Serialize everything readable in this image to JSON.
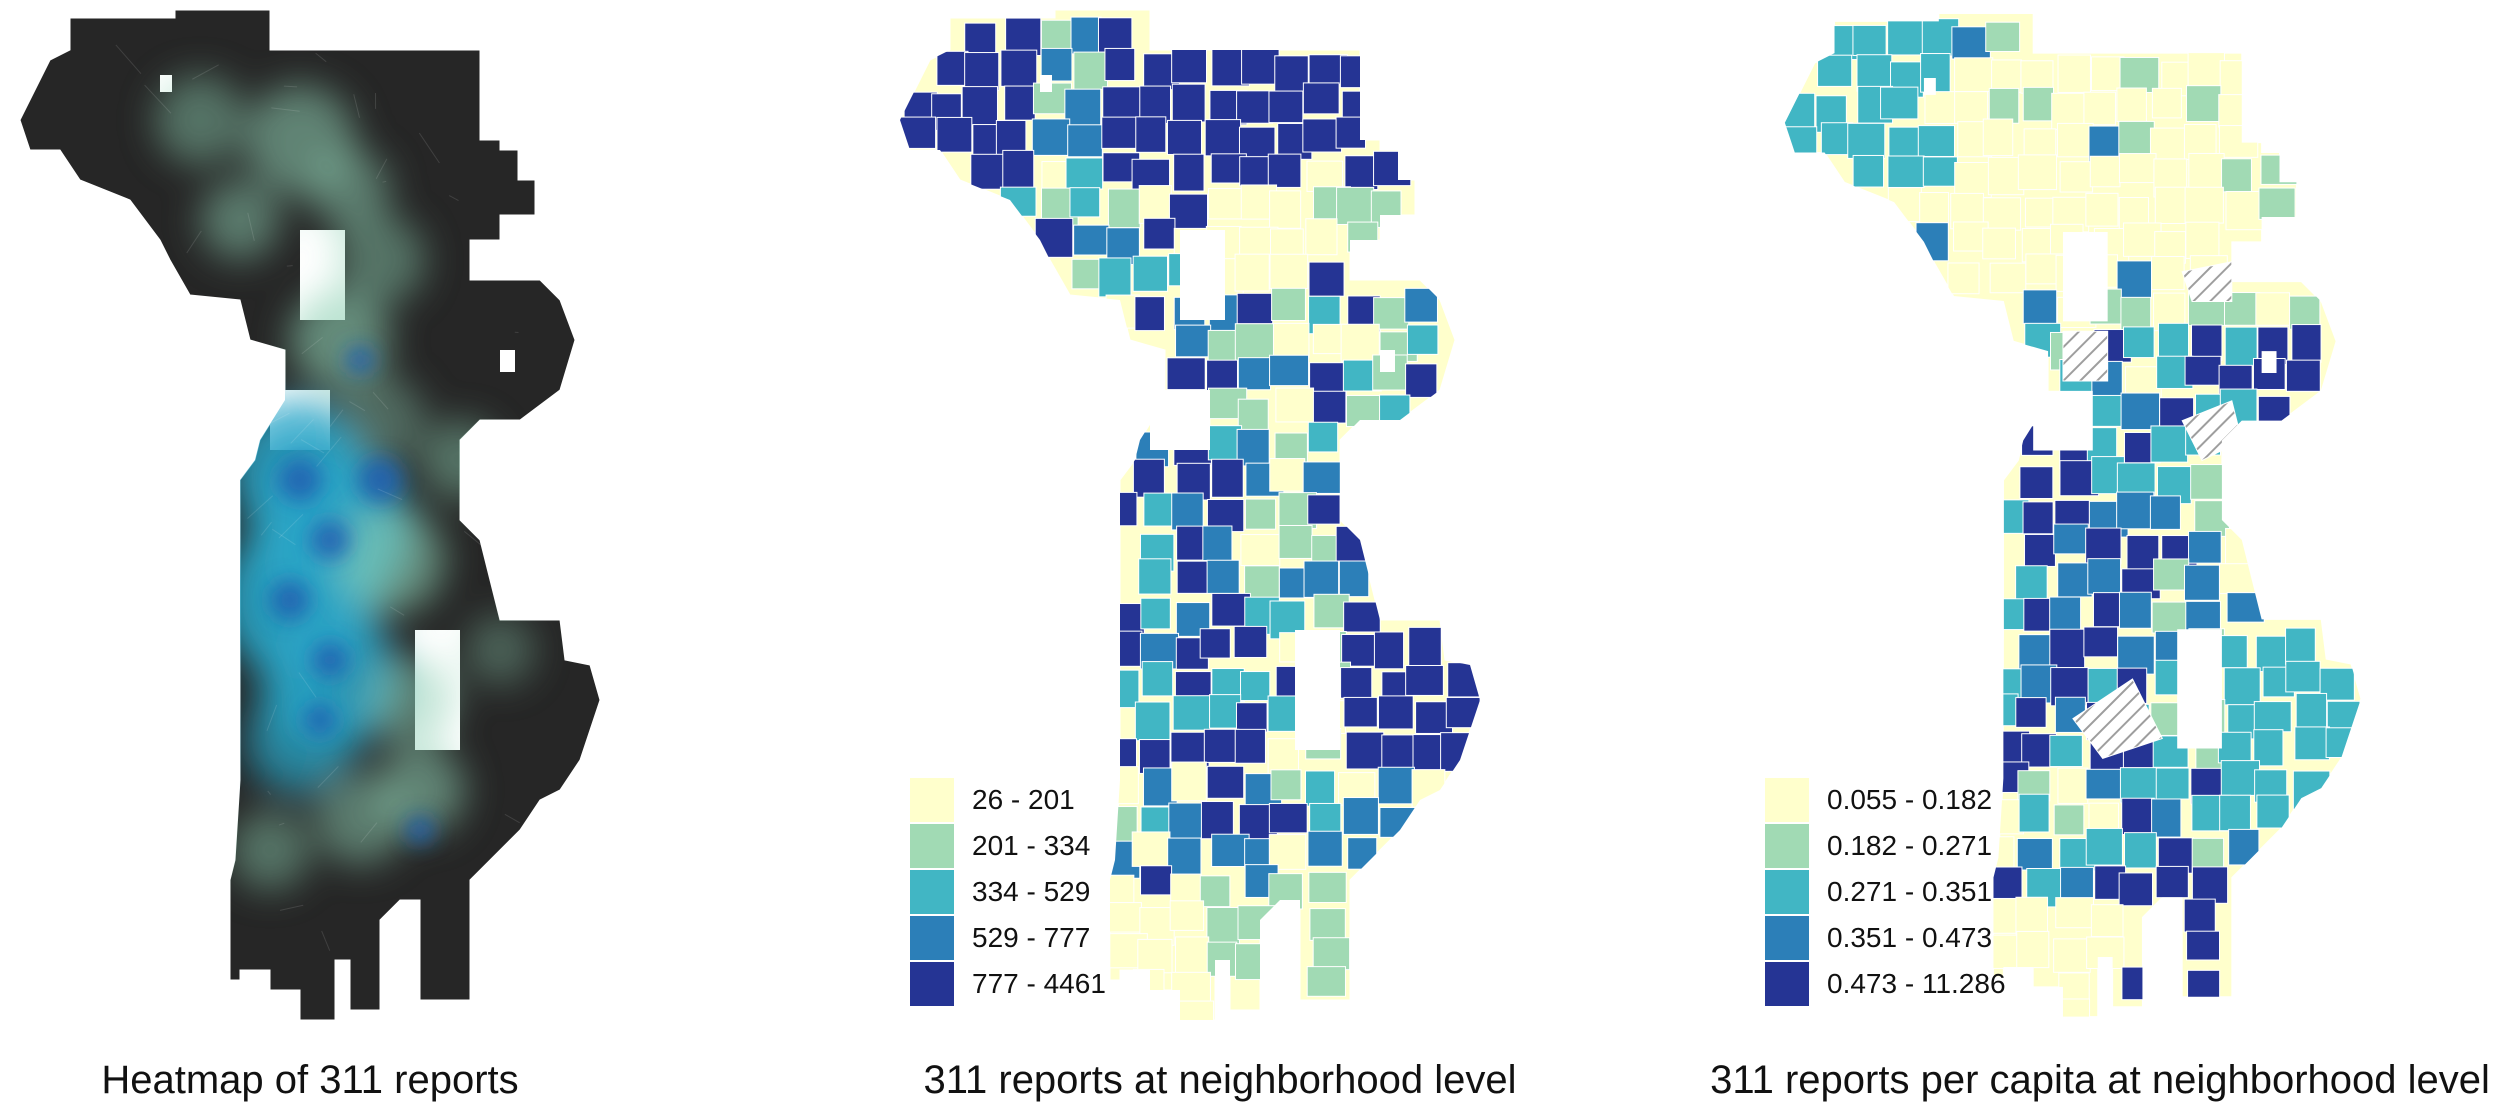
{
  "panels": [
    {
      "caption": "Heatmap of 311 reports"
    },
    {
      "caption": "311 reports at neighborhood level"
    },
    {
      "caption": "311 reports per capita at neighborhood level"
    }
  ],
  "legend_counts": {
    "items": [
      {
        "label": "26 - 201",
        "color": "#ffffcc"
      },
      {
        "label": "201 - 334",
        "color": "#a1dab4"
      },
      {
        "label": "334 - 529",
        "color": "#41b6c4"
      },
      {
        "label": "529 - 777",
        "color": "#2c7fb8"
      },
      {
        "label": "777 - 4461",
        "color": "#253494"
      }
    ]
  },
  "legend_per_capita": {
    "items": [
      {
        "label": "0.055 - 0.182",
        "color": "#ffffcc"
      },
      {
        "label": "0.182 - 0.271",
        "color": "#a1dab4"
      },
      {
        "label": "0.271 - 0.351",
        "color": "#41b6c4"
      },
      {
        "label": "0.351 - 0.473",
        "color": "#2c7fb8"
      },
      {
        "label": "0.473 - 11.286",
        "color": "#253494"
      }
    ]
  },
  "colors": {
    "heatmap_base": "#262626",
    "heatmap_glow_light": "#8fd0b4",
    "heatmap_glow_mid": "#2aa6c8",
    "heatmap_glow_dark": "#1f5fb0",
    "boundary": "#ffffff",
    "no_data_hatch": "#9e9e9e"
  }
}
